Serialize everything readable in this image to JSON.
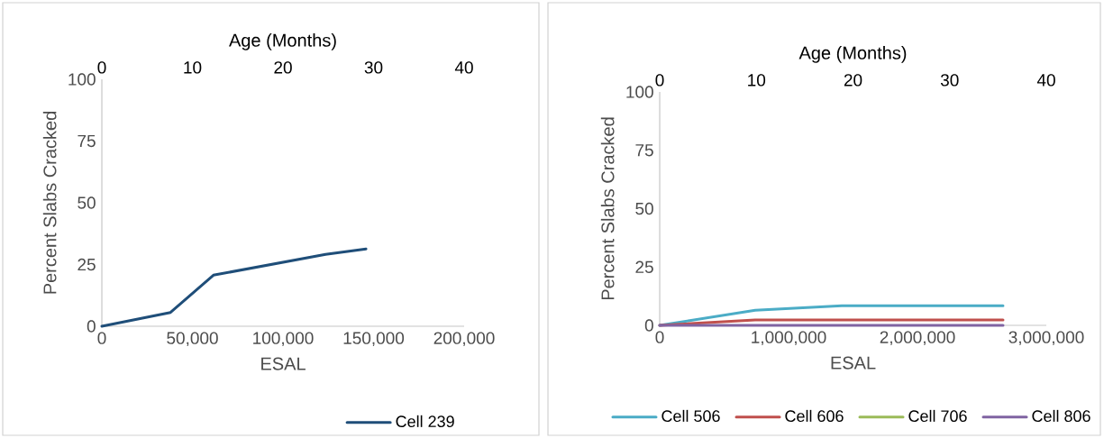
{
  "chart_data": [
    {
      "type": "line",
      "xlabel": "ESAL",
      "ylabel": "Percent Slabs Cracked",
      "x2label": "Age (Months)",
      "xlim": [
        0,
        200000
      ],
      "xticks": [
        0,
        {
          "value": 50000,
          "label": "50,000"
        },
        {
          "value": 100000,
          "label": "100,000"
        },
        {
          "value": 150000,
          "label": "150,000"
        },
        {
          "value": 200000,
          "label": "200,000"
        }
      ],
      "ylim": [
        0,
        100
      ],
      "yticks": [
        0,
        25,
        50,
        75,
        100
      ],
      "x2lim": [
        0,
        40
      ],
      "x2ticks": [
        0,
        10,
        20,
        30,
        40
      ],
      "x": [
        0,
        37900,
        61600,
        123500,
        145800
      ],
      "series": [
        {
          "name": "Cell 239",
          "color": "#1f4e79",
          "values": [
            0,
            5.6,
            20.7,
            29.1,
            31.3
          ]
        }
      ],
      "grid": false,
      "legend": "bottom right",
      "marker": "none",
      "line_style": "solid"
    },
    {
      "type": "line",
      "xlabel": "ESAL",
      "ylabel": "Percent Slabs Cracked",
      "x2label": "Age (Months)",
      "xlim": [
        0,
        3000000
      ],
      "xticks": [
        0,
        {
          "value": 1000000,
          "label": "1,000,000"
        },
        {
          "value": 2000000,
          "label": "2,000,000"
        },
        {
          "value": 3000000,
          "label": "3,000,000"
        }
      ],
      "ylim": [
        0,
        100
      ],
      "yticks": [
        0,
        25,
        50,
        75,
        100
      ],
      "x2lim": [
        0,
        40
      ],
      "x2ticks": [
        0,
        10,
        20,
        30,
        40
      ],
      "x": [
        0,
        741000,
        1413000,
        2664000
      ],
      "series": [
        {
          "name": "Cell 506",
          "color": "#4bacc6",
          "values": [
            0,
            6.5,
            8.4,
            8.4
          ]
        },
        {
          "name": "Cell 606",
          "color": "#c0504d",
          "values": [
            0,
            2.3,
            2.3,
            2.3
          ]
        },
        {
          "name": "Cell 706",
          "color": "#9bbb59",
          "values": [
            null,
            null,
            null,
            null
          ]
        },
        {
          "name": "Cell 806",
          "color": "#8064a2",
          "values": [
            0,
            0,
            0,
            0
          ]
        }
      ],
      "grid": false,
      "legend": "bottom",
      "marker": "none",
      "line_style": "solid"
    }
  ]
}
